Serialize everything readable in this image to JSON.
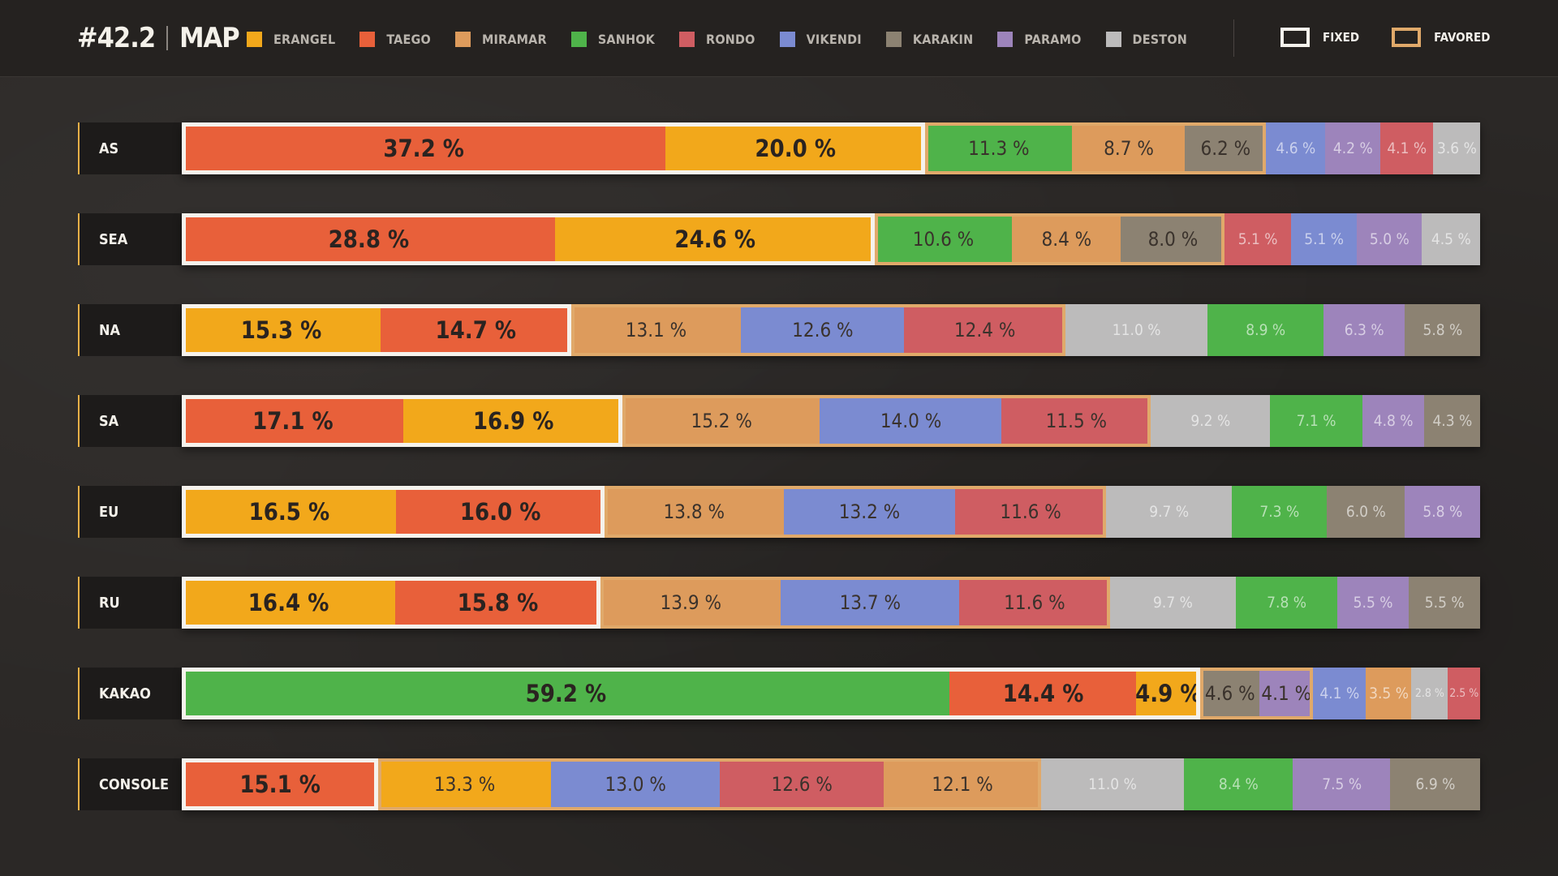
{
  "header": {
    "patch": "#42.2",
    "title": "MAP"
  },
  "legend": [
    {
      "key": "erangel",
      "label": "ERANGEL",
      "color": "#f2a81b"
    },
    {
      "key": "taego",
      "label": "TAEGO",
      "color": "#e8603a"
    },
    {
      "key": "miramar",
      "label": "MIRAMAR",
      "color": "#dd9b5c"
    },
    {
      "key": "sanhok",
      "label": "SANHOK",
      "color": "#4fb34a"
    },
    {
      "key": "rondo",
      "label": "RONDO",
      "color": "#cf5d62"
    },
    {
      "key": "vikendi",
      "label": "VIKENDI",
      "color": "#7b8bd1"
    },
    {
      "key": "karakin",
      "label": "KARAKIN",
      "color": "#8c8272"
    },
    {
      "key": "paramo",
      "label": "PARAMO",
      "color": "#9d84bb"
    },
    {
      "key": "deston",
      "label": "DESTON",
      "color": "#bcbbbb"
    }
  ],
  "legend_boxes": {
    "fixed": "FIXED",
    "favored": "FAVORED"
  },
  "chart_data": {
    "type": "bar",
    "stacked": true,
    "orientation": "horizontal",
    "unit": "%",
    "rows": [
      {
        "region": "AS",
        "fixed_count": 2,
        "favored_count": 3,
        "segments": [
          {
            "map": "taego",
            "value": 37.2,
            "label": "37.2 %"
          },
          {
            "map": "erangel",
            "value": 20.0,
            "label": "20.0 %"
          },
          {
            "map": "sanhok",
            "value": 11.3,
            "label": "11.3 %"
          },
          {
            "map": "miramar",
            "value": 8.7,
            "label": "8.7 %"
          },
          {
            "map": "karakin",
            "value": 6.2,
            "label": "6.2 %"
          },
          {
            "map": "vikendi",
            "value": 4.6,
            "label": "4.6 %"
          },
          {
            "map": "paramo",
            "value": 4.2,
            "label": "4.2 %"
          },
          {
            "map": "rondo",
            "value": 4.1,
            "label": "4.1 %"
          },
          {
            "map": "deston",
            "value": 3.6,
            "label": "3.6 %"
          }
        ]
      },
      {
        "region": "SEA",
        "fixed_count": 2,
        "favored_count": 3,
        "segments": [
          {
            "map": "taego",
            "value": 28.8,
            "label": "28.8 %"
          },
          {
            "map": "erangel",
            "value": 24.6,
            "label": "24.6 %"
          },
          {
            "map": "sanhok",
            "value": 10.6,
            "label": "10.6 %"
          },
          {
            "map": "miramar",
            "value": 8.4,
            "label": "8.4 %"
          },
          {
            "map": "karakin",
            "value": 8.0,
            "label": "8.0 %"
          },
          {
            "map": "rondo",
            "value": 5.1,
            "label": "5.1 %"
          },
          {
            "map": "vikendi",
            "value": 5.1,
            "label": "5.1 %"
          },
          {
            "map": "paramo",
            "value": 5.0,
            "label": "5.0 %"
          },
          {
            "map": "deston",
            "value": 4.5,
            "label": "4.5 %"
          }
        ]
      },
      {
        "region": "NA",
        "fixed_count": 2,
        "favored_count": 3,
        "segments": [
          {
            "map": "erangel",
            "value": 15.3,
            "label": "15.3 %"
          },
          {
            "map": "taego",
            "value": 14.7,
            "label": "14.7 %"
          },
          {
            "map": "miramar",
            "value": 13.1,
            "label": "13.1 %"
          },
          {
            "map": "vikendi",
            "value": 12.6,
            "label": "12.6 %"
          },
          {
            "map": "rondo",
            "value": 12.4,
            "label": "12.4 %"
          },
          {
            "map": "deston",
            "value": 11.0,
            "label": "11.0 %"
          },
          {
            "map": "sanhok",
            "value": 8.9,
            "label": "8.9 %"
          },
          {
            "map": "paramo",
            "value": 6.3,
            "label": "6.3 %"
          },
          {
            "map": "karakin",
            "value": 5.8,
            "label": "5.8 %"
          }
        ]
      },
      {
        "region": "SA",
        "fixed_count": 2,
        "favored_count": 3,
        "segments": [
          {
            "map": "taego",
            "value": 17.1,
            "label": "17.1 %"
          },
          {
            "map": "erangel",
            "value": 16.9,
            "label": "16.9 %"
          },
          {
            "map": "miramar",
            "value": 15.2,
            "label": "15.2 %"
          },
          {
            "map": "vikendi",
            "value": 14.0,
            "label": "14.0 %"
          },
          {
            "map": "rondo",
            "value": 11.5,
            "label": "11.5 %"
          },
          {
            "map": "deston",
            "value": 9.2,
            "label": "9.2 %"
          },
          {
            "map": "sanhok",
            "value": 7.1,
            "label": "7.1 %"
          },
          {
            "map": "paramo",
            "value": 4.8,
            "label": "4.8 %"
          },
          {
            "map": "karakin",
            "value": 4.3,
            "label": "4.3 %"
          }
        ]
      },
      {
        "region": "EU",
        "fixed_count": 2,
        "favored_count": 3,
        "segments": [
          {
            "map": "erangel",
            "value": 16.5,
            "label": "16.5 %"
          },
          {
            "map": "taego",
            "value": 16.0,
            "label": "16.0 %"
          },
          {
            "map": "miramar",
            "value": 13.8,
            "label": "13.8 %"
          },
          {
            "map": "vikendi",
            "value": 13.2,
            "label": "13.2 %"
          },
          {
            "map": "rondo",
            "value": 11.6,
            "label": "11.6 %"
          },
          {
            "map": "deston",
            "value": 9.7,
            "label": "9.7 %"
          },
          {
            "map": "sanhok",
            "value": 7.3,
            "label": "7.3 %"
          },
          {
            "map": "karakin",
            "value": 6.0,
            "label": "6.0 %"
          },
          {
            "map": "paramo",
            "value": 5.8,
            "label": "5.8 %"
          }
        ]
      },
      {
        "region": "RU",
        "fixed_count": 2,
        "favored_count": 3,
        "segments": [
          {
            "map": "erangel",
            "value": 16.4,
            "label": "16.4 %"
          },
          {
            "map": "taego",
            "value": 15.8,
            "label": "15.8 %"
          },
          {
            "map": "miramar",
            "value": 13.9,
            "label": "13.9 %"
          },
          {
            "map": "vikendi",
            "value": 13.7,
            "label": "13.7 %"
          },
          {
            "map": "rondo",
            "value": 11.6,
            "label": "11.6 %"
          },
          {
            "map": "deston",
            "value": 9.7,
            "label": "9.7 %"
          },
          {
            "map": "sanhok",
            "value": 7.8,
            "label": "7.8 %"
          },
          {
            "map": "paramo",
            "value": 5.5,
            "label": "5.5 %"
          },
          {
            "map": "karakin",
            "value": 5.5,
            "label": "5.5 %"
          }
        ]
      },
      {
        "region": "KAKAO",
        "fixed_count": 3,
        "favored_count": 2,
        "segments": [
          {
            "map": "sanhok",
            "value": 59.2,
            "label": "59.2 %"
          },
          {
            "map": "taego",
            "value": 14.4,
            "label": "14.4 %"
          },
          {
            "map": "erangel",
            "value": 4.9,
            "label": "4.9 %"
          },
          {
            "map": "karakin",
            "value": 4.6,
            "label": "4.6 %"
          },
          {
            "map": "paramo",
            "value": 4.1,
            "label": "4.1 %"
          },
          {
            "map": "vikendi",
            "value": 4.1,
            "label": "4.1 %"
          },
          {
            "map": "miramar",
            "value": 3.5,
            "label": "3.5 %"
          },
          {
            "map": "deston",
            "value": 2.8,
            "label": "2.8 %"
          },
          {
            "map": "rondo",
            "value": 2.5,
            "label": "2.5 %"
          }
        ]
      },
      {
        "region": "CONSOLE",
        "fixed_count": 1,
        "favored_count": 4,
        "segments": [
          {
            "map": "taego",
            "value": 15.1,
            "label": "15.1 %"
          },
          {
            "map": "erangel",
            "value": 13.3,
            "label": "13.3 %"
          },
          {
            "map": "vikendi",
            "value": 13.0,
            "label": "13.0 %"
          },
          {
            "map": "rondo",
            "value": 12.6,
            "label": "12.6 %"
          },
          {
            "map": "miramar",
            "value": 12.1,
            "label": "12.1 %"
          },
          {
            "map": "deston",
            "value": 11.0,
            "label": "11.0 %"
          },
          {
            "map": "sanhok",
            "value": 8.4,
            "label": "8.4 %"
          },
          {
            "map": "paramo",
            "value": 7.5,
            "label": "7.5 %"
          },
          {
            "map": "karakin",
            "value": 6.9,
            "label": "6.9 %"
          }
        ]
      }
    ]
  }
}
